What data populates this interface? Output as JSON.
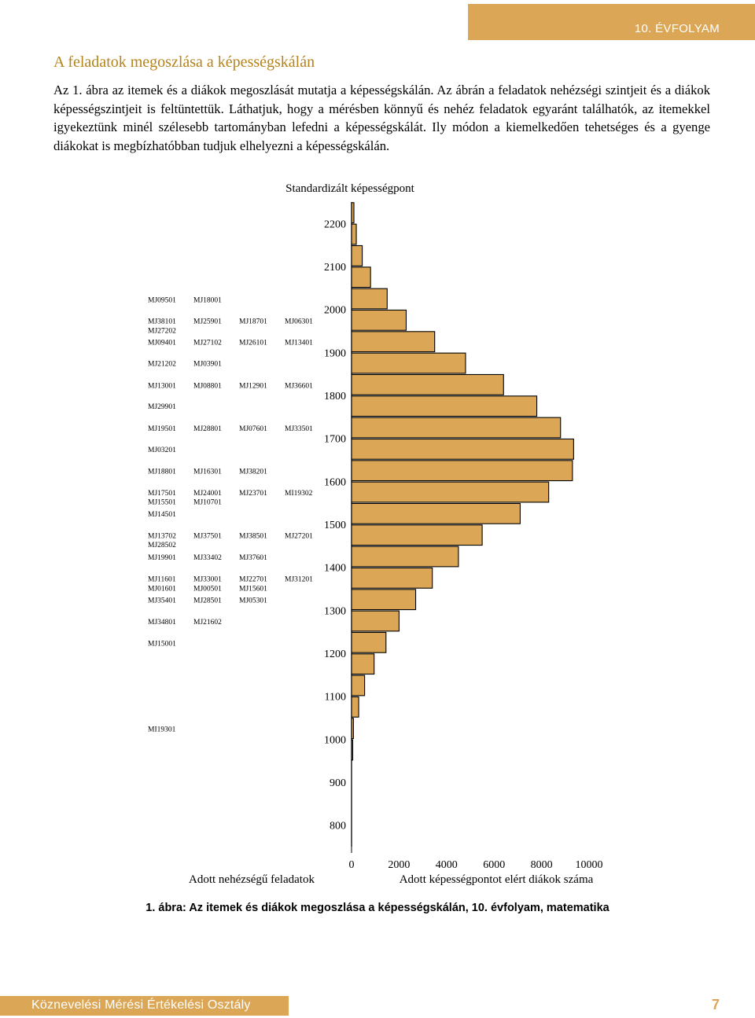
{
  "header": {
    "grade_label": "10. ÉVFOLYAM"
  },
  "section": {
    "title": "A feladatok megoszlása a képességskálán",
    "paragraph": "Az 1. ábra az itemek és a diákok megoszlását mutatja a képességskálán. Az ábrán a feladatok nehézségi szintjeit és a diákok képességszintjeit is feltüntettük. Láthatjuk, hogy a mérésben könnyű és nehéz feladatok egyaránt találhatók, az itemekkel igyekeztünk minél szélesebb tartományban lefedni a képességskálát. Ily módon a kiemelkedően tehetséges és a gyenge diákokat is megbízhatóbban tudjuk elhelyezni a képességskálán."
  },
  "chart_data": {
    "type": "bar",
    "orientation": "horizontal",
    "title": "Standardizált képességpont",
    "left_label": "Adott nehézségű feladatok",
    "xlabel": "Adott képességpontot elért diákok száma",
    "x_ticks": [
      0,
      2000,
      4000,
      6000,
      8000,
      10000
    ],
    "y_ticks": [
      2200,
      2100,
      2000,
      1900,
      1800,
      1700,
      1600,
      1500,
      1400,
      1300,
      1200,
      1100,
      1000,
      900,
      800
    ],
    "xlim": [
      0,
      10000
    ],
    "ylim": [
      750,
      2250
    ],
    "bar_color": "#dba655",
    "bins": [
      {
        "y": 2225,
        "value": 100
      },
      {
        "y": 2175,
        "value": 200
      },
      {
        "y": 2125,
        "value": 450
      },
      {
        "y": 2075,
        "value": 800
      },
      {
        "y": 2025,
        "value": 1500
      },
      {
        "y": 1975,
        "value": 2300
      },
      {
        "y": 1925,
        "value": 3500
      },
      {
        "y": 1875,
        "value": 4800
      },
      {
        "y": 1825,
        "value": 6400
      },
      {
        "y": 1775,
        "value": 7800
      },
      {
        "y": 1725,
        "value": 8800
      },
      {
        "y": 1675,
        "value": 9350
      },
      {
        "y": 1625,
        "value": 9300
      },
      {
        "y": 1575,
        "value": 8300
      },
      {
        "y": 1525,
        "value": 7100
      },
      {
        "y": 1475,
        "value": 5500
      },
      {
        "y": 1425,
        "value": 4500
      },
      {
        "y": 1375,
        "value": 3400
      },
      {
        "y": 1325,
        "value": 2700
      },
      {
        "y": 1275,
        "value": 2000
      },
      {
        "y": 1225,
        "value": 1450
      },
      {
        "y": 1175,
        "value": 950
      },
      {
        "y": 1125,
        "value": 550
      },
      {
        "y": 1075,
        "value": 300
      },
      {
        "y": 1025,
        "value": 80
      },
      {
        "y": 975,
        "value": 30
      }
    ],
    "item_rows": [
      {
        "y": 2024,
        "items": [
          "MJ09501",
          "MJ18001"
        ]
      },
      {
        "y": 1975,
        "items": [
          "MJ38101",
          "MJ25901",
          "MJ18701",
          "MJ06301"
        ]
      },
      {
        "y": 1953,
        "items": [
          "MJ27202"
        ]
      },
      {
        "y": 1925,
        "items": [
          "MJ09401",
          "MJ27102",
          "MJ26101",
          "MJ13401"
        ]
      },
      {
        "y": 1876,
        "items": [
          "MJ21202",
          "MJ03901"
        ]
      },
      {
        "y": 1825,
        "items": [
          "MJ13001",
          "MJ08801",
          "MJ12901",
          "MJ36601"
        ]
      },
      {
        "y": 1776,
        "items": [
          "MJ29901"
        ]
      },
      {
        "y": 1725,
        "items": [
          "MJ19501",
          "MJ28801",
          "MJ07601",
          "MJ33501"
        ]
      },
      {
        "y": 1676,
        "items": [
          "MJ03201"
        ]
      },
      {
        "y": 1625,
        "items": [
          "MJ18801",
          "MJ16301",
          "MJ38201"
        ]
      },
      {
        "y": 1575,
        "items": [
          "MJ17501",
          "MJ24001",
          "MJ23701",
          "MI19302"
        ]
      },
      {
        "y": 1554,
        "items": [
          "MJ15501",
          "MJ10701"
        ]
      },
      {
        "y": 1526,
        "items": [
          "MJ14501"
        ]
      },
      {
        "y": 1475,
        "items": [
          "MJ13702",
          "MJ37501",
          "MJ38501",
          "MJ27201"
        ]
      },
      {
        "y": 1454,
        "items": [
          "MJ28502"
        ]
      },
      {
        "y": 1425,
        "items": [
          "MJ19901",
          "MJ33402",
          "MJ37601"
        ]
      },
      {
        "y": 1375,
        "items": [
          "MJ11601",
          "MJ33001",
          "MJ22701",
          "MJ31201"
        ]
      },
      {
        "y": 1353,
        "items": [
          "MJ01601",
          "MJ00501",
          "MJ15601"
        ]
      },
      {
        "y": 1325,
        "items": [
          "MJ35401",
          "MJ28501",
          "MJ05301"
        ]
      },
      {
        "y": 1275,
        "items": [
          "MJ34801",
          "MJ21602"
        ]
      },
      {
        "y": 1225,
        "items": [
          "MJ15001"
        ]
      },
      {
        "y": 1025,
        "items": [
          "MI19301"
        ]
      }
    ]
  },
  "caption": "1. ábra: Az itemek és diákok megoszlása a képességskálán, 10. évfolyam, matematika",
  "footer": {
    "org": "Köznevelési Mérési Értékelési Osztály",
    "page": "7"
  }
}
